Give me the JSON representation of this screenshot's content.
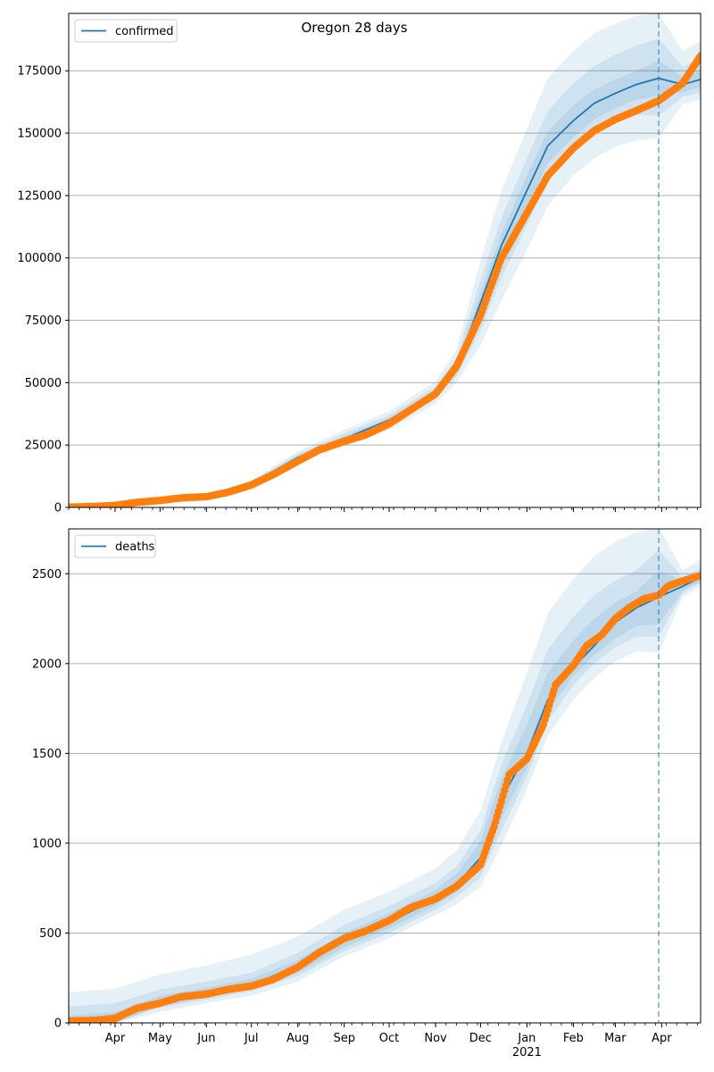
{
  "figure_title": "Oregon 28 days",
  "colors": {
    "model_line": "#1f77b4",
    "band": "#1f77b4",
    "observed": "#ff7f0e",
    "grid": "#b0b0b0",
    "forecast_marker": "#1f77b4"
  },
  "x_axis": {
    "start": "2020-03-01",
    "end": "2021-04-27",
    "month_ticks": [
      {
        "date": "2020-04-01",
        "label": "Apr"
      },
      {
        "date": "2020-05-01",
        "label": "May"
      },
      {
        "date": "2020-06-01",
        "label": "Jun"
      },
      {
        "date": "2020-07-01",
        "label": "Jul"
      },
      {
        "date": "2020-08-01",
        "label": "Aug"
      },
      {
        "date": "2020-09-01",
        "label": "Sep"
      },
      {
        "date": "2020-10-01",
        "label": "Oct"
      },
      {
        "date": "2020-11-01",
        "label": "Nov"
      },
      {
        "date": "2020-12-01",
        "label": "Dec"
      },
      {
        "date": "2021-01-01",
        "label": "Jan"
      },
      {
        "date": "2021-02-01",
        "label": "Feb"
      },
      {
        "date": "2021-03-01",
        "label": "Mar"
      },
      {
        "date": "2021-04-01",
        "label": "Apr"
      }
    ],
    "year_label": "2021",
    "year_label_date": "2021-01-01"
  },
  "forecast_date": "2021-03-30",
  "chart_data": [
    {
      "type": "line",
      "legend": "confirmed",
      "legend_position": "upper left",
      "ylim": [
        0,
        198000
      ],
      "yticks": [
        0,
        25000,
        50000,
        75000,
        100000,
        125000,
        150000,
        175000
      ],
      "grid": "y",
      "model": {
        "x": [
          "2020-03-01",
          "2020-04-01",
          "2020-05-01",
          "2020-06-01",
          "2020-07-01",
          "2020-08-01",
          "2020-09-01",
          "2020-10-01",
          "2020-11-01",
          "2020-11-15",
          "2020-12-01",
          "2020-12-15",
          "2021-01-01",
          "2021-01-15",
          "2021-02-01",
          "2021-02-15",
          "2021-03-01",
          "2021-03-15",
          "2021-03-30",
          "2021-04-15",
          "2021-04-27"
        ],
        "y": [
          200,
          1000,
          2800,
          4600,
          9500,
          20000,
          27500,
          35000,
          46000,
          56000,
          82000,
          105000,
          127000,
          145000,
          155000,
          162000,
          166000,
          169500,
          172000,
          169500,
          171500
        ]
      },
      "bands": [
        {
          "x": [
            "2020-03-01",
            "2020-06-01",
            "2020-07-01",
            "2020-08-01",
            "2020-09-01",
            "2020-10-01",
            "2020-11-01",
            "2020-11-15",
            "2020-12-01",
            "2020-12-15",
            "2021-01-01",
            "2021-01-15",
            "2021-02-01",
            "2021-02-15",
            "2021-03-01",
            "2021-03-15",
            "2021-03-30",
            "2021-04-15",
            "2021-04-27"
          ],
          "upper": [
            800,
            5200,
            10800,
            22500,
            31000,
            38500,
            50500,
            63000,
            99000,
            127000,
            152000,
            172000,
            183000,
            190000,
            194000,
            197000,
            198000,
            183000,
            187000
          ],
          "lower": [
            0,
            4000,
            8200,
            17600,
            24500,
            31000,
            41500,
            50000,
            65000,
            83000,
            103000,
            121000,
            133000,
            140000,
            144500,
            147000,
            148000,
            161500,
            163500
          ]
        },
        {
          "x": [
            "2020-03-01",
            "2020-06-01",
            "2020-07-01",
            "2020-08-01",
            "2020-09-01",
            "2020-10-01",
            "2020-11-01",
            "2020-11-15",
            "2020-12-01",
            "2020-12-15",
            "2021-01-01",
            "2021-01-15",
            "2021-02-01",
            "2021-02-15",
            "2021-03-01",
            "2021-03-15",
            "2021-03-30",
            "2021-04-15",
            "2021-04-27"
          ],
          "upper": [
            600,
            5000,
            10300,
            21500,
            29600,
            37000,
            48500,
            60000,
            91000,
            116000,
            140000,
            159000,
            170000,
            177000,
            181500,
            185000,
            188000,
            176500,
            180000
          ],
          "lower": [
            0,
            4200,
            8700,
            18500,
            25700,
            32500,
            43500,
            52500,
            71000,
            92000,
            113000,
            132000,
            143000,
            150000,
            154500,
            157500,
            157000,
            164500,
            166500
          ]
        },
        {
          "x": [
            "2020-03-01",
            "2020-06-01",
            "2020-07-01",
            "2020-08-01",
            "2020-09-01",
            "2020-10-01",
            "2020-11-01",
            "2020-11-15",
            "2020-12-01",
            "2020-12-15",
            "2021-01-01",
            "2021-01-15",
            "2021-02-01",
            "2021-02-15",
            "2021-03-01",
            "2021-03-15",
            "2021-03-30",
            "2021-04-15",
            "2021-04-27"
          ],
          "upper": [
            400,
            4800,
            9900,
            20800,
            28500,
            35800,
            47000,
            58000,
            86000,
            110000,
            133000,
            151000,
            161000,
            167500,
            171500,
            175000,
            179000,
            172500,
            175000
          ],
          "lower": [
            0,
            4400,
            9100,
            19300,
            26700,
            34000,
            45000,
            54500,
            77000,
            99000,
            120000,
            138000,
            148500,
            155500,
            160000,
            163500,
            165000,
            166500,
            168500
          ]
        }
      ],
      "observed": {
        "x": [
          "2020-03-01",
          "2020-03-20",
          "2020-04-01",
          "2020-04-15",
          "2020-05-01",
          "2020-05-15",
          "2020-06-01",
          "2020-06-15",
          "2020-07-01",
          "2020-07-15",
          "2020-08-01",
          "2020-08-15",
          "2020-09-01",
          "2020-09-15",
          "2020-10-01",
          "2020-10-15",
          "2020-11-01",
          "2020-11-15",
          "2020-12-01",
          "2020-12-15",
          "2021-01-01",
          "2021-01-15",
          "2021-02-01",
          "2021-02-15",
          "2021-03-01",
          "2021-03-15",
          "2021-03-30",
          "2021-04-15",
          "2021-04-27"
        ],
        "y": [
          100,
          400,
          800,
          2000,
          2800,
          3800,
          4300,
          6000,
          9000,
          13000,
          18500,
          23000,
          26500,
          29000,
          33500,
          39000,
          45500,
          56500,
          77000,
          100000,
          118000,
          133000,
          144000,
          151000,
          155500,
          159000,
          163000,
          170000,
          181000
        ]
      }
    },
    {
      "type": "line",
      "legend": "deaths",
      "legend_position": "upper left",
      "ylim": [
        0,
        2750
      ],
      "yticks": [
        0,
        500,
        1000,
        1500,
        2000,
        2500
      ],
      "grid": "y",
      "model": {
        "x": [
          "2020-03-01",
          "2020-04-01",
          "2020-05-01",
          "2020-06-01",
          "2020-07-01",
          "2020-08-01",
          "2020-09-01",
          "2020-10-01",
          "2020-11-01",
          "2020-11-15",
          "2020-12-01",
          "2020-12-15",
          "2021-01-01",
          "2021-01-15",
          "2021-02-01",
          "2021-02-15",
          "2021-03-01",
          "2021-03-15",
          "2021-03-30",
          "2021-04-15",
          "2021-04-27"
        ],
        "y": [
          0,
          15,
          115,
          160,
          210,
          320,
          460,
          560,
          690,
          770,
          920,
          1250,
          1500,
          1800,
          1980,
          2100,
          2230,
          2310,
          2370,
          2430,
          2480
        ]
      },
      "bands": [
        {
          "x": [
            "2020-03-01",
            "2020-04-01",
            "2020-05-01",
            "2020-06-01",
            "2020-07-01",
            "2020-08-01",
            "2020-09-01",
            "2020-10-01",
            "2020-11-01",
            "2020-11-15",
            "2020-12-01",
            "2020-12-15",
            "2021-01-01",
            "2021-01-15",
            "2021-02-01",
            "2021-02-15",
            "2021-03-01",
            "2021-03-15",
            "2021-03-30",
            "2021-04-15",
            "2021-04-27"
          ],
          "upper": [
            170,
            190,
            270,
            320,
            380,
            480,
            630,
            730,
            860,
            960,
            1180,
            1560,
            1950,
            2280,
            2470,
            2600,
            2680,
            2730,
            2760,
            2520,
            2580
          ],
          "lower": [
            0,
            0,
            60,
            110,
            150,
            230,
            370,
            470,
            600,
            660,
            760,
            990,
            1300,
            1600,
            1800,
            1920,
            2010,
            2070,
            2060,
            2370,
            2430
          ]
        },
        {
          "x": [
            "2020-03-01",
            "2020-04-01",
            "2020-05-01",
            "2020-06-01",
            "2020-07-01",
            "2020-08-01",
            "2020-09-01",
            "2020-10-01",
            "2020-11-01",
            "2020-11-15",
            "2020-12-01",
            "2020-12-15",
            "2021-01-01",
            "2021-01-15",
            "2021-02-01",
            "2021-02-15",
            "2021-03-01",
            "2021-03-15",
            "2021-03-30",
            "2021-04-15",
            "2021-04-27"
          ],
          "upper": [
            90,
            110,
            185,
            230,
            280,
            390,
            545,
            650,
            780,
            870,
            1070,
            1440,
            1770,
            2080,
            2260,
            2380,
            2460,
            2520,
            2630,
            2480,
            2530
          ],
          "lower": [
            0,
            0,
            85,
            130,
            175,
            260,
            400,
            500,
            630,
            700,
            810,
            1070,
            1370,
            1680,
            1880,
            2000,
            2090,
            2150,
            2150,
            2390,
            2450
          ]
        },
        {
          "x": [
            "2020-03-01",
            "2020-04-01",
            "2020-05-01",
            "2020-06-01",
            "2020-07-01",
            "2020-08-01",
            "2020-09-01",
            "2020-10-01",
            "2020-11-01",
            "2020-11-15",
            "2020-12-01",
            "2020-12-15",
            "2021-01-01",
            "2021-01-15",
            "2021-02-01",
            "2021-02-15",
            "2021-03-01",
            "2021-03-15",
            "2021-03-30",
            "2021-04-15",
            "2021-04-27"
          ],
          "upper": [
            40,
            60,
            150,
            195,
            245,
            350,
            500,
            610,
            740,
            830,
            1010,
            1360,
            1660,
            1950,
            2130,
            2250,
            2340,
            2400,
            2520,
            2460,
            2510
          ],
          "lower": [
            0,
            0,
            95,
            140,
            190,
            280,
            420,
            525,
            655,
            730,
            850,
            1140,
            1420,
            1740,
            1930,
            2050,
            2140,
            2210,
            2220,
            2405,
            2460
          ]
        }
      ],
      "observed": {
        "x": [
          "2020-03-01",
          "2020-03-20",
          "2020-04-01",
          "2020-04-15",
          "2020-05-01",
          "2020-05-15",
          "2020-06-01",
          "2020-06-15",
          "2020-07-01",
          "2020-07-15",
          "2020-08-01",
          "2020-08-15",
          "2020-09-01",
          "2020-09-15",
          "2020-10-01",
          "2020-10-15",
          "2020-11-01",
          "2020-11-15",
          "2020-12-01",
          "2020-12-10",
          "2020-12-20",
          "2021-01-01",
          "2021-01-12",
          "2021-01-20",
          "2021-02-01",
          "2021-02-10",
          "2021-02-20",
          "2021-03-01",
          "2021-03-10",
          "2021-03-20",
          "2021-03-30",
          "2021-04-05",
          "2021-04-15",
          "2021-04-27"
        ],
        "y": [
          10,
          15,
          25,
          80,
          110,
          145,
          160,
          185,
          205,
          240,
          310,
          390,
          470,
          510,
          570,
          640,
          690,
          760,
          880,
          1090,
          1380,
          1470,
          1660,
          1880,
          1990,
          2100,
          2160,
          2250,
          2310,
          2360,
          2380,
          2430,
          2460,
          2490
        ]
      }
    }
  ]
}
